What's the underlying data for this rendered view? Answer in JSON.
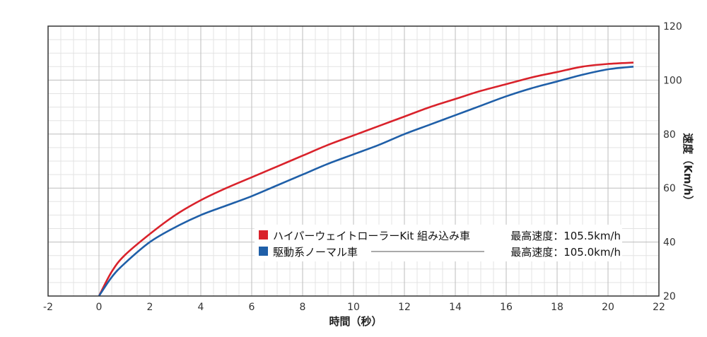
{
  "chart_data": {
    "type": "line",
    "xlabel": "時間（秒）",
    "ylabel": "速度（Km/h）",
    "xlim": [
      -2,
      22
    ],
    "ylim": [
      20,
      120
    ],
    "x_ticks": [
      "-2",
      "0",
      "2",
      "4",
      "6",
      "8",
      "10",
      "12",
      "14",
      "16",
      "18",
      "20",
      "22"
    ],
    "y_ticks": [
      "20",
      "40",
      "60",
      "80",
      "100",
      "120"
    ],
    "grid": true,
    "legend_position": "bottom-right",
    "series": [
      {
        "name": "ハイパーウェイトローラーKit 組み込み車",
        "max_speed_label": "最高速度：105.5km/h",
        "color": "#d9222b",
        "x": [
          0,
          0.5,
          1,
          2,
          3,
          4,
          5,
          6,
          7,
          8,
          9,
          10,
          11,
          12,
          13,
          14,
          15,
          16,
          17,
          18,
          19,
          20,
          21
        ],
        "y": [
          20,
          29,
          35,
          43,
          50,
          55.5,
          60,
          64,
          68,
          72,
          76,
          79.5,
          83,
          86.5,
          90,
          93,
          96,
          98.5,
          101,
          103,
          105,
          106,
          106.5
        ]
      },
      {
        "name": "駆動系ノーマル車",
        "max_speed_label": "最高速度：105.0km/h",
        "color": "#1f5fa8",
        "x": [
          0,
          0.5,
          1,
          2,
          3,
          4,
          5,
          6,
          7,
          8,
          9,
          10,
          11,
          12,
          13,
          14,
          15,
          16,
          17,
          18,
          19,
          20,
          21
        ],
        "y": [
          20,
          27,
          32,
          40,
          45.5,
          50,
          53.5,
          57,
          61,
          65,
          69,
          72.5,
          76,
          80,
          83.5,
          87,
          90.5,
          94,
          97,
          99.5,
          102,
          104,
          105
        ]
      }
    ]
  }
}
